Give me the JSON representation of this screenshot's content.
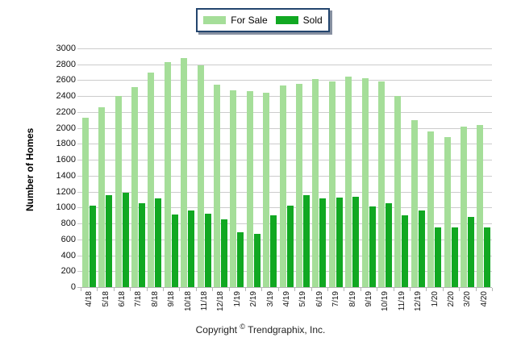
{
  "legend": {
    "items": [
      {
        "label": "For Sale",
        "color": "#A5DE99"
      },
      {
        "label": "Sold",
        "color": "#11A822"
      }
    ]
  },
  "footer": {
    "copyright_prefix": "Copyright",
    "copyright_symbol": "©",
    "copyright_suffix": "Trendgraphix, Inc."
  },
  "colors": {
    "for_sale": "#A5DE99",
    "sold": "#11A822",
    "gridline": "#cccccc",
    "legend_border": "#23456E"
  },
  "chart_data": {
    "type": "bar",
    "title": "",
    "xlabel": "",
    "ylabel": "Number of Homes",
    "ylim": [
      0,
      3000
    ],
    "ytick_step": 200,
    "yticks": [
      0,
      200,
      400,
      600,
      800,
      1000,
      1200,
      1400,
      1600,
      1800,
      2000,
      2200,
      2400,
      2600,
      2800,
      3000
    ],
    "grid": "horizontal",
    "legend_position": "top-center",
    "categories": [
      "4/18",
      "5/18",
      "6/18",
      "7/18",
      "8/18",
      "9/18",
      "10/18",
      "11/18",
      "12/18",
      "1/19",
      "2/19",
      "3/19",
      "4/19",
      "5/19",
      "6/19",
      "7/19",
      "8/19",
      "9/19",
      "10/19",
      "11/19",
      "12/19",
      "1/20",
      "2/20",
      "3/20",
      "4/20"
    ],
    "series": [
      {
        "name": "For Sale",
        "color": "#A5DE99",
        "values": [
          2130,
          2260,
          2400,
          2510,
          2700,
          2830,
          2880,
          2790,
          2540,
          2470,
          2460,
          2440,
          2530,
          2550,
          2610,
          2580,
          2650,
          2630,
          2580,
          2400,
          2100,
          1960,
          1890,
          2020,
          2040
        ]
      },
      {
        "name": "Sold",
        "color": "#11A822",
        "values": [
          1020,
          1160,
          1190,
          1050,
          1110,
          910,
          960,
          920,
          850,
          690,
          670,
          900,
          1020,
          1160,
          1110,
          1130,
          1140,
          1010,
          1050,
          900,
          960,
          750,
          750,
          880,
          750
        ]
      }
    ]
  }
}
